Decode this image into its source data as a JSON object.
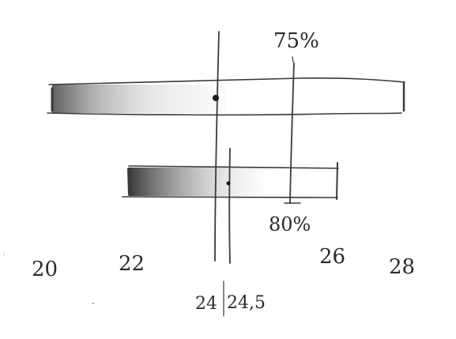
{
  "diagram": {
    "axis_ticks": [
      "20",
      "22",
      "26",
      "28"
    ],
    "marker_labels": {
      "mean": "24",
      "median": "24,5"
    },
    "bar_labels": {
      "top": "75%",
      "bottom": "80%"
    }
  },
  "colors": {
    "pencil": "#3a3a3a",
    "shade": "#6b6b6b",
    "paper": "#ffffff"
  }
}
